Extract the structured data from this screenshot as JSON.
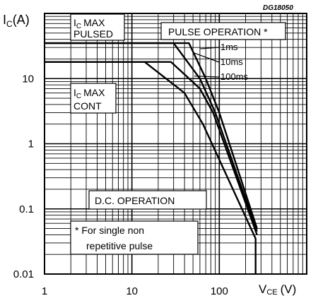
{
  "chart_data": {
    "type": "line",
    "code": "DG18050",
    "y_axis": {
      "label_main": "I",
      "label_sub": "C",
      "label_unit": "(A)",
      "scale": "log",
      "range": [
        0.01,
        100
      ],
      "tick_labels": [
        {
          "value": 10,
          "text": "10"
        },
        {
          "value": 1,
          "text": "1"
        },
        {
          "value": 0.1,
          "text": "0.1"
        },
        {
          "value": 0.01,
          "text": "0.01"
        }
      ]
    },
    "x_axis": {
      "label_main": "V",
      "label_sub": "CE",
      "label_unit": "(V)",
      "scale": "log",
      "range": [
        1,
        1000
      ],
      "tick_labels": [
        {
          "value": 1,
          "text": "1"
        },
        {
          "value": 10,
          "text": "10"
        },
        {
          "value": 100,
          "text": "100"
        }
      ]
    },
    "grid": true,
    "annotations": {
      "ic_max_pulsed": {
        "line1_main": "I",
        "line1_sub": "C",
        "line1_rest": "MAX",
        "line2": "PULSED"
      },
      "ic_max_cont": {
        "line1_main": "I",
        "line1_sub": "C",
        "line1_rest": "MAX",
        "line2": "CONT"
      },
      "pulse_operation": "PULSE OPERATION *",
      "dc_operation": "D.C. OPERATION",
      "footnote_line1": "* For single non",
      "footnote_line2": "repetitive pulse"
    },
    "series": [
      {
        "name": "1ms",
        "points": [
          [
            1,
            35
          ],
          [
            45,
            35
          ],
          [
            70,
            10
          ],
          [
            100,
            3
          ],
          [
            270,
            0.05
          ]
        ]
      },
      {
        "name": "10ms",
        "points": [
          [
            1,
            35
          ],
          [
            30,
            35
          ],
          [
            60,
            10
          ],
          [
            90,
            3
          ],
          [
            270,
            0.045
          ]
        ]
      },
      {
        "name": "100ms",
        "points": [
          [
            1,
            18
          ],
          [
            28,
            18
          ],
          [
            60,
            7
          ],
          [
            85,
            3
          ],
          [
            270,
            0.04
          ]
        ]
      },
      {
        "points": [
          [
            1,
            18
          ],
          [
            14,
            18
          ],
          [
            40,
            6
          ],
          [
            65,
            2
          ],
          [
            260,
            0.035
          ],
          [
            260,
            0.01
          ]
        ]
      }
    ]
  }
}
